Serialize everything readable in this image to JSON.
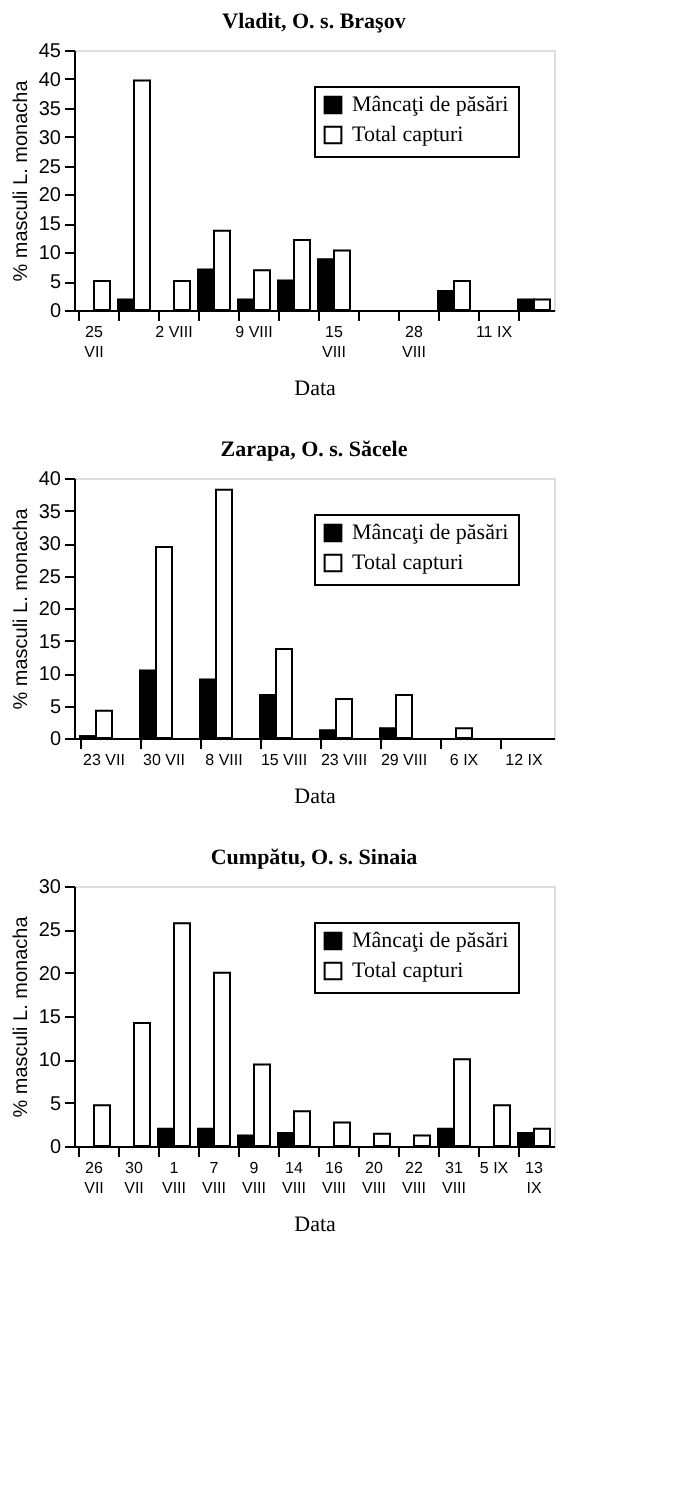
{
  "chart_data": [
    {
      "type": "bar",
      "title": "Vladit, O. s. Braşov",
      "xlabel": "Data",
      "ylabel": "% masculi L. monacha",
      "categories": [
        "25\nVII",
        null,
        "2 VIII",
        null,
        "9 VIII",
        null,
        "15\nVIII",
        null,
        "28\nVIII",
        null,
        "11 IX",
        null
      ],
      "series": [
        {
          "name": "Mâncaţi de păsări",
          "color": "#000000",
          "values": [
            null,
            1.8,
            null,
            7,
            1.8,
            5.1,
            8.8,
            null,
            null,
            3.3,
            null,
            1.8
          ]
        },
        {
          "name": "Total capturi",
          "color": "#ffffff",
          "values": [
            5,
            39.7,
            5,
            13.7,
            6.9,
            12.1,
            10.3,
            null,
            null,
            5,
            null,
            1.8
          ]
        }
      ],
      "ylim": [
        0,
        45
      ],
      "yticks": [
        0,
        5,
        10,
        15,
        20,
        25,
        30,
        35,
        40,
        45
      ],
      "grid": false,
      "legend": "top right"
    },
    {
      "type": "bar",
      "title": "Zarapa, O. s. Săcele",
      "xlabel": "Data",
      "ylabel": "% masculi L. monacha",
      "categories": [
        "23 VII",
        "30 VII",
        "8 VIII",
        "15 VIII",
        "23 VIII",
        "29 VIII",
        "6 IX",
        "12 IX"
      ],
      "series": [
        {
          "name": "Mâncaţi de păsări",
          "color": "#000000",
          "values": [
            0.3,
            10.4,
            9,
            6.6,
            1.2,
            1.5,
            null,
            null
          ]
        },
        {
          "name": "Total capturi",
          "color": "#ffffff",
          "values": [
            4.2,
            29.4,
            38.2,
            13.7,
            6,
            6.6,
            1.5,
            null
          ]
        }
      ],
      "ylim": [
        0,
        40
      ],
      "yticks": [
        0,
        5,
        10,
        15,
        20,
        25,
        30,
        35,
        40
      ],
      "grid": false,
      "legend": "top right"
    },
    {
      "type": "bar",
      "title": "Cumpătu, O. s. Sinaia",
      "xlabel": "Data",
      "ylabel": "% masculi L. monacha",
      "categories": [
        "26\nVII",
        "30\nVII",
        "1\nVIII",
        "7\nVIII",
        "9\nVIII",
        "14\nVIII",
        "16\nVIII",
        "20\nVIII",
        "22\nVIII",
        "31\nVIII",
        "5 IX",
        "13\nIX"
      ],
      "series": [
        {
          "name": "Mâncaţi de păsări",
          "color": "#000000",
          "values": [
            null,
            null,
            2,
            2,
            1.2,
            1.5,
            null,
            null,
            null,
            2,
            null,
            1.5
          ]
        },
        {
          "name": "Total capturi",
          "color": "#ffffff",
          "values": [
            4.7,
            14.2,
            25.7,
            20,
            9.4,
            4,
            2.7,
            1.4,
            1.2,
            10,
            4.7,
            2
          ]
        }
      ],
      "ylim": [
        0,
        30
      ],
      "yticks": [
        0,
        5,
        10,
        15,
        20,
        25,
        30
      ],
      "grid": false,
      "legend": "top right"
    }
  ]
}
